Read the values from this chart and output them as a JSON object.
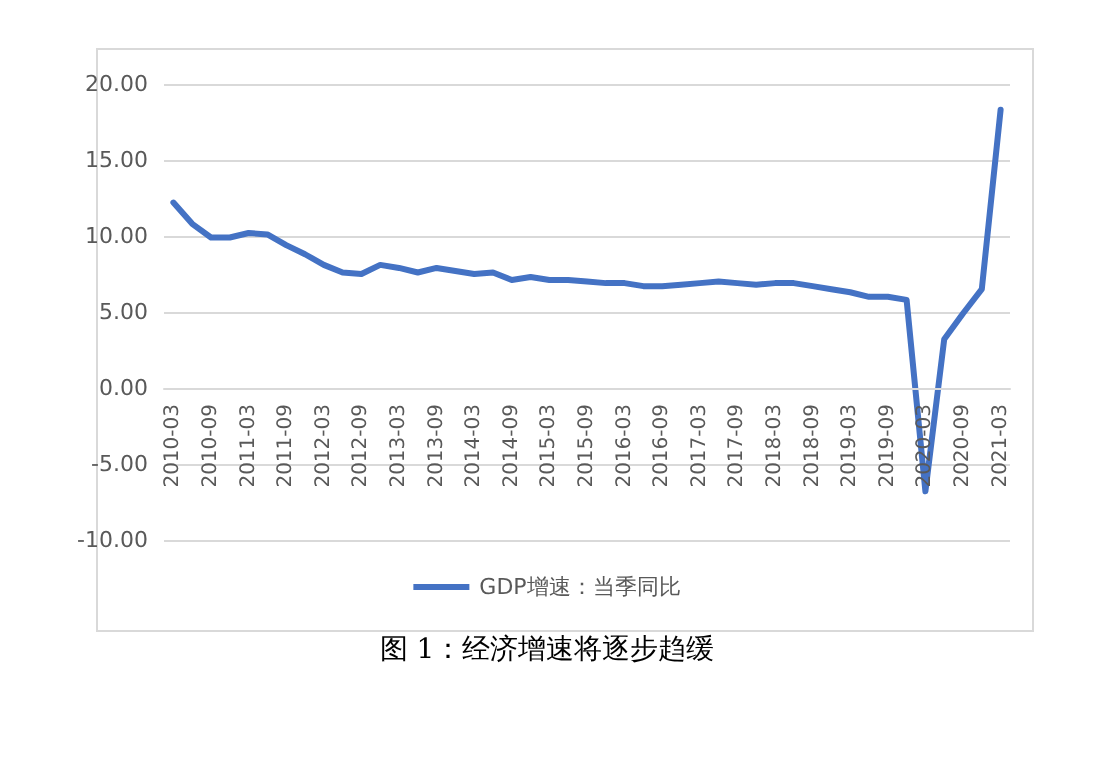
{
  "chart_data": {
    "type": "line",
    "title": "图 1：经济增速将逐步趋缓",
    "categories": [
      "2010-03",
      null,
      "2010-09",
      null,
      "2011-03",
      null,
      "2011-09",
      null,
      "2012-03",
      null,
      "2012-09",
      null,
      "2013-03",
      null,
      "2013-09",
      null,
      "2014-03",
      null,
      "2014-09",
      null,
      "2015-03",
      null,
      "2015-09",
      null,
      "2016-03",
      null,
      "2016-09",
      null,
      "2017-03",
      null,
      "2017-09",
      null,
      "2018-03",
      null,
      "2018-09",
      null,
      "2019-03",
      null,
      "2019-09",
      null,
      "2020-03",
      null,
      "2020-09",
      null,
      "2021-03"
    ],
    "series": [
      {
        "name": "GDP增速：当季同比",
        "color": "#4472c4",
        "values": [
          12.2,
          10.8,
          9.9,
          9.9,
          10.2,
          10.1,
          9.4,
          8.8,
          8.1,
          7.6,
          7.5,
          8.1,
          7.9,
          7.6,
          7.9,
          7.7,
          7.5,
          7.6,
          7.1,
          7.3,
          7.1,
          7.1,
          7.0,
          6.9,
          6.9,
          6.7,
          6.7,
          6.8,
          6.9,
          7.0,
          6.9,
          6.8,
          6.9,
          6.9,
          6.7,
          6.5,
          6.3,
          6.0,
          6.0,
          5.8,
          -6.8,
          3.2,
          4.9,
          6.5,
          18.3
        ]
      }
    ],
    "ylim": [
      -10,
      20
    ],
    "yticks": [
      {
        "value": -10,
        "label": "-10.00"
      },
      {
        "value": -5,
        "label": "-5.00"
      },
      {
        "value": 0,
        "label": "0.00"
      },
      {
        "value": 5,
        "label": "5.00"
      },
      {
        "value": 10,
        "label": "10.00"
      },
      {
        "value": 15,
        "label": "15.00"
      },
      {
        "value": 20,
        "label": "20.00"
      }
    ],
    "grid": "y",
    "legend": "bottom",
    "marker": "none",
    "line_style": "solid"
  }
}
